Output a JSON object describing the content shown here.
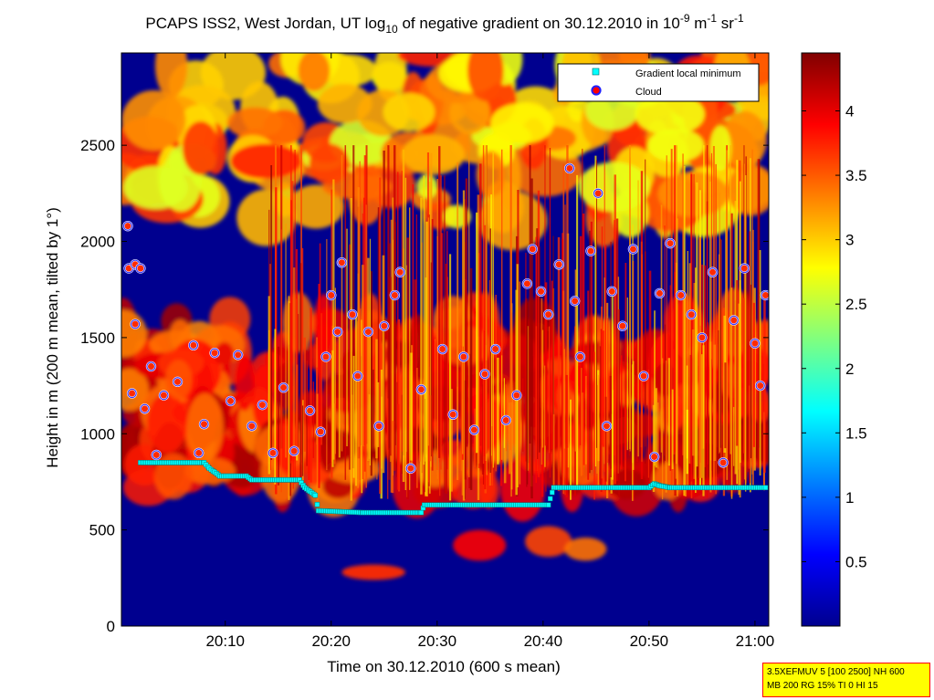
{
  "chart_data": {
    "type": "heatmap",
    "title": "PCAPS ISS2, West Jordan, UT log10 of negative gradient on 30.12.2010 in 10^-9 m^-1 sr^-1",
    "title_parts": {
      "main": "PCAPS ISS2, West Jordan, UT log",
      "sub_log": "10",
      "mid": " of negative gradient on 30.12.2010 in 10",
      "sup_exp1": "-9",
      "unit_m": " m",
      "sup_exp2": "-1",
      "unit_sr": " sr",
      "sup_exp3": "-1"
    },
    "xlabel": "Time on 30.12.2010 (600 s mean)",
    "ylabel": "Height in m (200 m mean, tilted by 1°)",
    "x_ticks": [
      "20:10",
      "20:20",
      "20:30",
      "20:40",
      "20:50",
      "21:00"
    ],
    "x_tick_minutes": [
      10,
      20,
      30,
      40,
      50,
      60
    ],
    "xlim_minutes": [
      0.2,
      61.3
    ],
    "y_ticks": [
      0,
      500,
      1000,
      1500,
      2000,
      2500
    ],
    "ylim": [
      0,
      2980
    ],
    "colorbar": {
      "range": [
        0,
        4.45
      ],
      "ticks": [
        0.5,
        1,
        1.5,
        2,
        2.5,
        3,
        3.5,
        4
      ],
      "tick_labels": [
        "0.5",
        "1",
        "1.5",
        "2",
        "2.5",
        "3",
        "3.5",
        "4"
      ],
      "colormap": "jet"
    },
    "legend": {
      "placement": "top-right",
      "entries": [
        {
          "label": "Gradient local minimum",
          "marker": "square",
          "color": "#00ffff"
        },
        {
          "label": "Cloud",
          "marker": "circle",
          "color": "#ff0000"
        }
      ]
    },
    "gradient_local_minimum": [
      {
        "t": 2.0,
        "h": 850
      },
      {
        "t": 8.0,
        "h": 850
      },
      {
        "t": 8.5,
        "h": 820
      },
      {
        "t": 9.0,
        "h": 800
      },
      {
        "t": 9.5,
        "h": 780
      },
      {
        "t": 12.0,
        "h": 780
      },
      {
        "t": 12.5,
        "h": 760
      },
      {
        "t": 17.0,
        "h": 760
      },
      {
        "t": 17.5,
        "h": 720
      },
      {
        "t": 18.0,
        "h": 700
      },
      {
        "t": 18.5,
        "h": 680
      },
      {
        "t": 18.8,
        "h": 600
      },
      {
        "t": 23.0,
        "h": 590
      },
      {
        "t": 28.5,
        "h": 590
      },
      {
        "t": 28.8,
        "h": 630
      },
      {
        "t": 40.5,
        "h": 630
      },
      {
        "t": 41.0,
        "h": 720
      },
      {
        "t": 50.0,
        "h": 720
      },
      {
        "t": 50.5,
        "h": 740
      },
      {
        "t": 51.0,
        "h": 730
      },
      {
        "t": 52.0,
        "h": 720
      },
      {
        "t": 61.0,
        "h": 720
      }
    ],
    "cloud_sample": [
      {
        "t": 0.8,
        "h": 2080
      },
      {
        "t": 0.9,
        "h": 1860
      },
      {
        "t": 1.5,
        "h": 1880
      },
      {
        "t": 2.0,
        "h": 1860
      },
      {
        "t": 1.5,
        "h": 1570
      },
      {
        "t": 1.2,
        "h": 1210
      },
      {
        "t": 2.4,
        "h": 1130
      },
      {
        "t": 3.0,
        "h": 1350
      },
      {
        "t": 3.5,
        "h": 890
      },
      {
        "t": 4.2,
        "h": 1200
      },
      {
        "t": 5.5,
        "h": 1270
      },
      {
        "t": 7.0,
        "h": 1460
      },
      {
        "t": 8.0,
        "h": 1050
      },
      {
        "t": 9.0,
        "h": 1420
      },
      {
        "t": 7.5,
        "h": 900
      },
      {
        "t": 10.5,
        "h": 1170
      },
      {
        "t": 11.2,
        "h": 1410
      },
      {
        "t": 12.5,
        "h": 1040
      },
      {
        "t": 13.5,
        "h": 1150
      },
      {
        "t": 14.5,
        "h": 900
      },
      {
        "t": 15.5,
        "h": 1240
      },
      {
        "t": 16.5,
        "h": 910
      },
      {
        "t": 18.0,
        "h": 1120
      },
      {
        "t": 19.0,
        "h": 1010
      },
      {
        "t": 19.5,
        "h": 1400
      },
      {
        "t": 20.0,
        "h": 1720
      },
      {
        "t": 20.6,
        "h": 1530
      },
      {
        "t": 21.0,
        "h": 1890
      },
      {
        "t": 22.0,
        "h": 1620
      },
      {
        "t": 22.5,
        "h": 1300
      },
      {
        "t": 23.5,
        "h": 1530
      },
      {
        "t": 24.5,
        "h": 1040
      },
      {
        "t": 25.0,
        "h": 1560
      },
      {
        "t": 26.0,
        "h": 1720
      },
      {
        "t": 26.5,
        "h": 1840
      },
      {
        "t": 27.5,
        "h": 820
      },
      {
        "t": 28.5,
        "h": 1230
      },
      {
        "t": 30.5,
        "h": 1440
      },
      {
        "t": 31.5,
        "h": 1100
      },
      {
        "t": 32.5,
        "h": 1400
      },
      {
        "t": 33.5,
        "h": 1020
      },
      {
        "t": 34.5,
        "h": 1310
      },
      {
        "t": 35.5,
        "h": 1440
      },
      {
        "t": 36.5,
        "h": 1070
      },
      {
        "t": 37.5,
        "h": 1200
      },
      {
        "t": 38.5,
        "h": 1780
      },
      {
        "t": 39.0,
        "h": 1960
      },
      {
        "t": 39.8,
        "h": 1740
      },
      {
        "t": 40.5,
        "h": 1620
      },
      {
        "t": 41.5,
        "h": 1880
      },
      {
        "t": 42.5,
        "h": 2380
      },
      {
        "t": 43.0,
        "h": 1690
      },
      {
        "t": 43.5,
        "h": 1400
      },
      {
        "t": 44.5,
        "h": 1950
      },
      {
        "t": 45.2,
        "h": 2250
      },
      {
        "t": 46.0,
        "h": 1040
      },
      {
        "t": 46.5,
        "h": 1740
      },
      {
        "t": 47.5,
        "h": 1560
      },
      {
        "t": 48.5,
        "h": 1960
      },
      {
        "t": 49.5,
        "h": 1300
      },
      {
        "t": 50.5,
        "h": 880
      },
      {
        "t": 51.0,
        "h": 1730
      },
      {
        "t": 52.0,
        "h": 1990
      },
      {
        "t": 53.0,
        "h": 1720
      },
      {
        "t": 54.0,
        "h": 1620
      },
      {
        "t": 55.0,
        "h": 1500
      },
      {
        "t": 56.0,
        "h": 1840
      },
      {
        "t": 57.0,
        "h": 850
      },
      {
        "t": 58.0,
        "h": 1590
      },
      {
        "t": 59.0,
        "h": 1860
      },
      {
        "t": 60.0,
        "h": 1470
      },
      {
        "t": 60.5,
        "h": 1250
      },
      {
        "t": 61.0,
        "h": 1720
      }
    ]
  },
  "info_box": {
    "line1": "3.5XEFMUV 5 [100 2500] NH 600",
    "line2": "MB 200 RG 15% TI 0 HI 15"
  }
}
